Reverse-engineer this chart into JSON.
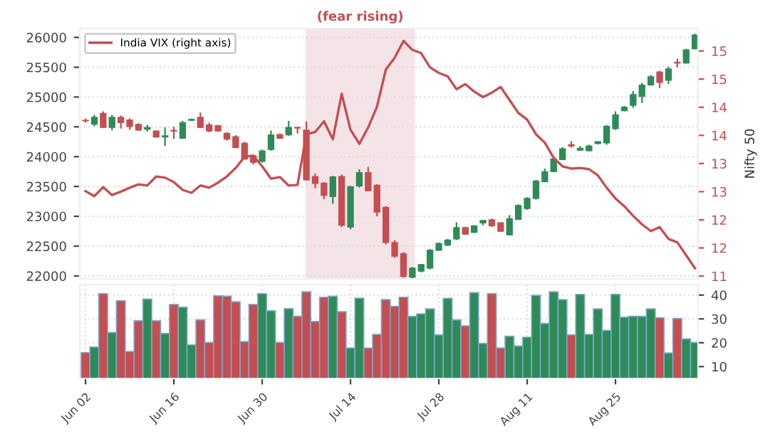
{
  "chart_data": [
    {
      "type": "candlestick",
      "annotations": [
        "(fear rising)",
        "Nifty 50"
      ],
      "categories": [
        null,
        null,
        null,
        null,
        null,
        null,
        null,
        null,
        null,
        null,
        null,
        null,
        null,
        null,
        null,
        null,
        null,
        null,
        null,
        null,
        null,
        null,
        null,
        null,
        null,
        null,
        null,
        null,
        null,
        null,
        null,
        null,
        null,
        null,
        null,
        null,
        null,
        null,
        null,
        null,
        null,
        null,
        null,
        null,
        null,
        null,
        null,
        null,
        null,
        null,
        null,
        null,
        null,
        null,
        null,
        null,
        null,
        null,
        null,
        null,
        null,
        null,
        null,
        null,
        null,
        null,
        null,
        null,
        null,
        null
      ],
      "ohlc": [
        [
          24610,
          24640,
          24570,
          24600
        ],
        [
          24545,
          24700,
          24510,
          24660
        ],
        [
          24724,
          24760,
          24480,
          24490
        ],
        [
          24490,
          24700,
          24440,
          24660
        ],
        [
          24660,
          24690,
          24470,
          24570
        ],
        [
          24615,
          24640,
          24450,
          24505
        ],
        [
          24540,
          24560,
          24430,
          24445
        ],
        [
          24460,
          24530,
          24420,
          24490
        ],
        [
          24430,
          24440,
          24320,
          24330
        ],
        [
          24330,
          24490,
          24180,
          24350
        ],
        [
          24440,
          24500,
          24300,
          24430
        ],
        [
          24310,
          24600,
          24300,
          24570
        ],
        [
          24610,
          24640,
          24600,
          24625
        ],
        [
          24660,
          24740,
          24480,
          24490
        ],
        [
          24530,
          24570,
          24410,
          24430
        ],
        [
          24520,
          24530,
          24420,
          24430
        ],
        [
          24390,
          24410,
          24270,
          24295
        ],
        [
          24335,
          24360,
          24140,
          24155
        ],
        [
          24225,
          24250,
          23950,
          23960
        ],
        [
          24015,
          24030,
          23870,
          23905
        ],
        [
          23920,
          24120,
          23900,
          24095
        ],
        [
          24120,
          24440,
          24100,
          24365
        ],
        [
          24370,
          24390,
          24300,
          24310
        ],
        [
          24365,
          24600,
          24350,
          24490
        ],
        [
          24490,
          24500,
          24390,
          24480
        ],
        [
          24445,
          24590,
          23600,
          23610
        ],
        [
          23665,
          23720,
          23470,
          23550
        ],
        [
          23555,
          23570,
          23290,
          23350
        ],
        [
          23330,
          23680,
          23210,
          23660
        ],
        [
          23665,
          23700,
          22820,
          22850
        ],
        [
          22820,
          23510,
          22780,
          23495
        ],
        [
          23510,
          23790,
          23480,
          23730
        ],
        [
          23730,
          23830,
          23420,
          23430
        ],
        [
          23520,
          23540,
          23000,
          23070
        ],
        [
          23150,
          23170,
          22530,
          22560
        ],
        [
          22560,
          22600,
          22300,
          22330
        ],
        [
          22370,
          22400,
          21970,
          21990
        ],
        [
          21980,
          22150,
          21960,
          22130
        ],
        [
          22080,
          22200,
          22060,
          22190
        ],
        [
          22130,
          22450,
          22110,
          22430
        ],
        [
          22430,
          22560,
          22420,
          22545
        ],
        [
          22520,
          22620,
          22500,
          22600
        ],
        [
          22620,
          22900,
          22600,
          22810
        ],
        [
          22810,
          22820,
          22690,
          22700
        ],
        [
          22730,
          22850,
          22720,
          22840
        ],
        [
          22890,
          22940,
          22850,
          22930
        ],
        [
          22940,
          22960,
          22820,
          22840
        ],
        [
          22890,
          22900,
          22740,
          22750
        ],
        [
          22690,
          23020,
          22680,
          22960
        ],
        [
          22950,
          23200,
          22940,
          23180
        ],
        [
          23130,
          23320,
          23110,
          23300
        ],
        [
          23300,
          23610,
          23280,
          23590
        ],
        [
          23580,
          23800,
          23570,
          23745
        ],
        [
          23750,
          24000,
          23740,
          23960
        ],
        [
          23950,
          24160,
          23940,
          24130
        ],
        [
          24200,
          24260,
          24150,
          24180
        ],
        [
          24110,
          24180,
          24100,
          24140
        ],
        [
          24100,
          24200,
          24090,
          24180
        ],
        [
          24220,
          24260,
          24210,
          24250
        ],
        [
          24230,
          24530,
          24200,
          24510
        ],
        [
          24470,
          24760,
          24450,
          24700
        ],
        [
          24770,
          24850,
          24760,
          24830
        ],
        [
          24860,
          25100,
          24820,
          25040
        ],
        [
          25010,
          25240,
          24900,
          25200
        ],
        [
          25205,
          25370,
          25190,
          25340
        ],
        [
          25420,
          25440,
          25150,
          25245
        ],
        [
          25280,
          25510,
          25220,
          25470
        ],
        [
          25580,
          25640,
          25500,
          25570
        ],
        [
          25570,
          25810,
          25560,
          25790
        ],
        [
          25810,
          26060,
          25800,
          26040
        ]
      ],
      "colors": [
        "#c44e52",
        "#2e8b57",
        "#c44e52",
        "#2e8b57",
        "#c44e52",
        "#c44e52",
        "#c44e52",
        "#2e8b57",
        "#c44e52",
        "#2e8b57",
        "#c44e52",
        "#2e8b57",
        "#2e8b57",
        "#c44e52",
        "#c44e52",
        "#c44e52",
        "#c44e52",
        "#c44e52",
        "#c44e52",
        "#c44e52",
        "#2e8b57",
        "#2e8b57",
        "#c44e52",
        "#2e8b57",
        "#c44e52",
        "#c44e52",
        "#c44e52",
        "#c44e52",
        "#2e8b57",
        "#c44e52",
        "#2e8b57",
        "#2e8b57",
        "#c44e52",
        "#c44e52",
        "#c44e52",
        "#c44e52",
        "#c44e52",
        "#2e8b57",
        "#2e8b57",
        "#2e8b57",
        "#2e8b57",
        "#2e8b57",
        "#2e8b57",
        "#c44e52",
        "#2e8b57",
        "#2e8b57",
        "#c44e52",
        "#c44e52",
        "#2e8b57",
        "#2e8b57",
        "#2e8b57",
        "#2e8b57",
        "#2e8b57",
        "#2e8b57",
        "#2e8b57",
        "#c44e52",
        "#2e8b57",
        "#2e8b57",
        "#2e8b57",
        "#2e8b57",
        "#2e8b57",
        "#2e8b57",
        "#2e8b57",
        "#2e8b57",
        "#2e8b57",
        "#c44e52",
        "#2e8b57",
        "#c44e52",
        "#2e8b57",
        "#2e8b57"
      ],
      "series": [
        {
          "type": "line",
          "name": "India VIX (right axis)",
          "axis": "y2",
          "color": "#c44e52",
          "values": [
            13.01,
            12.92,
            13.08,
            12.94,
            13.0,
            13.07,
            13.13,
            13.11,
            13.27,
            13.25,
            13.17,
            13.03,
            12.98,
            13.11,
            13.07,
            13.16,
            13.27,
            13.42,
            13.62,
            13.64,
            13.45,
            13.23,
            13.26,
            13.11,
            13.12,
            14.02,
            14.06,
            14.25,
            13.93,
            14.74,
            14.1,
            13.85,
            14.14,
            14.51,
            15.17,
            15.38,
            15.68,
            15.52,
            15.46,
            15.21,
            15.11,
            15.05,
            14.82,
            14.91,
            14.78,
            14.68,
            14.76,
            14.86,
            14.63,
            14.4,
            14.28,
            14.02,
            13.87,
            13.6,
            13.45,
            13.41,
            13.42,
            13.4,
            13.29,
            13.07,
            12.88,
            12.74,
            12.57,
            12.42,
            12.3,
            12.37,
            12.16,
            12.1,
            11.87,
            11.64
          ]
        }
      ],
      "ylim": [
        21950,
        26150
      ],
      "yticks": [
        22000,
        22500,
        23000,
        23500,
        24000,
        24500,
        25000,
        25500,
        26000
      ],
      "y2lim": [
        11.45,
        15.9
      ],
      "y2ticks": [
        {
          "value": 11.5,
          "label": "11"
        },
        {
          "value": 12.0,
          "label": "12"
        },
        {
          "value": 12.5,
          "label": "12"
        },
        {
          "value": 13.0,
          "label": "13"
        },
        {
          "value": 13.5,
          "label": "13"
        },
        {
          "value": 14.0,
          "label": "14"
        },
        {
          "value": 14.5,
          "label": "14"
        },
        {
          "value": 15.0,
          "label": "15"
        },
        {
          "value": 15.5,
          "label": "15"
        }
      ],
      "tick_labels": "y",
      "grid": true,
      "legend": "top left"
    },
    {
      "type": "bar",
      "categories": [
        "Jun 02",
        null,
        null,
        null,
        null,
        null,
        null,
        null,
        null,
        null,
        "Jun 16",
        null,
        null,
        null,
        null,
        null,
        null,
        null,
        null,
        null,
        "Jun 30",
        null,
        null,
        null,
        null,
        null,
        null,
        null,
        null,
        null,
        "Jul 14",
        null,
        null,
        null,
        null,
        null,
        null,
        null,
        null,
        null,
        "Jul 28",
        null,
        null,
        null,
        null,
        null,
        null,
        null,
        null,
        null,
        "Aug 11",
        null,
        null,
        null,
        null,
        null,
        null,
        null,
        null,
        null,
        "Aug 25",
        null,
        null,
        null,
        null,
        null,
        null,
        null,
        null,
        null
      ],
      "values": [
        15.9,
        18.2,
        40.6,
        24.3,
        37.6,
        16.3,
        29.2,
        38.3,
        29.2,
        23.9,
        36.1,
        34.9,
        19.1,
        29.6,
        20.1,
        39.7,
        39.5,
        37.2,
        20.5,
        36.1,
        40.6,
        33.4,
        20.1,
        34.3,
        31.1,
        41.4,
        28.9,
        39.1,
        39.5,
        33.0,
        17.8,
        38.7,
        17.8,
        23.5,
        38.1,
        35.3,
        39.1,
        31.1,
        32.1,
        34.2,
        23.3,
        38.6,
        29.6,
        27.1,
        41.0,
        19.7,
        40.6,
        17.8,
        22.7,
        18.6,
        22.3,
        39.9,
        28.1,
        41.4,
        38.1,
        23.3,
        40.3,
        23.5,
        34.2,
        25.2,
        40.3,
        30.7,
        31.1,
        31.1,
        34.2,
        30.5,
        15.7,
        30.2,
        21.6,
        20.1
      ],
      "colors": [
        "#c44e52",
        "#2e8b57",
        "#c44e52",
        "#2e8b57",
        "#c44e52",
        "#c44e52",
        "#c44e52",
        "#2e8b57",
        "#c44e52",
        "#2e8b57",
        "#c44e52",
        "#2e8b57",
        "#2e8b57",
        "#c44e52",
        "#c44e52",
        "#c44e52",
        "#c44e52",
        "#c44e52",
        "#c44e52",
        "#c44e52",
        "#2e8b57",
        "#2e8b57",
        "#c44e52",
        "#2e8b57",
        "#c44e52",
        "#c44e52",
        "#c44e52",
        "#c44e52",
        "#2e8b57",
        "#c44e52",
        "#2e8b57",
        "#2e8b57",
        "#c44e52",
        "#c44e52",
        "#c44e52",
        "#c44e52",
        "#c44e52",
        "#2e8b57",
        "#2e8b57",
        "#2e8b57",
        "#2e8b57",
        "#2e8b57",
        "#2e8b57",
        "#c44e52",
        "#2e8b57",
        "#2e8b57",
        "#c44e52",
        "#c44e52",
        "#2e8b57",
        "#2e8b57",
        "#2e8b57",
        "#2e8b57",
        "#2e8b57",
        "#2e8b57",
        "#2e8b57",
        "#c44e52",
        "#2e8b57",
        "#2e8b57",
        "#2e8b57",
        "#2e8b57",
        "#2e8b57",
        "#2e8b57",
        "#2e8b57",
        "#2e8b57",
        "#2e8b57",
        "#c44e52",
        "#2e8b57",
        "#c44e52",
        "#2e8b57",
        "#2e8b57"
      ],
      "ylim": [
        5,
        44.4
      ],
      "yticks": [
        10,
        20,
        30,
        40
      ],
      "grid": true
    }
  ]
}
